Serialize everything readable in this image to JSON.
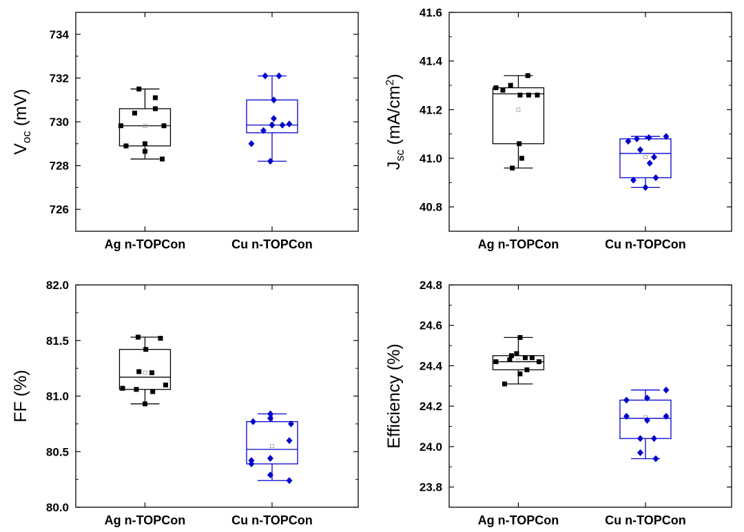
{
  "colors": {
    "ag": "#000000",
    "cu": "#0000CC",
    "mean_marker": "#999999"
  },
  "chart_data": [
    {
      "type": "box",
      "ylabel_main": "V",
      "ylabel_sub": "oc",
      "ylabel_sup": "",
      "ylabel_rest": " (mV)",
      "ylim": [
        725,
        735
      ],
      "yticks": [
        726,
        728,
        730,
        732,
        734
      ],
      "ytick_labels": [
        "726",
        "728",
        "730",
        "732",
        "734"
      ],
      "categories": [
        "Ag n-TOPCon",
        "Cu n-TOPCon"
      ],
      "series": [
        {
          "box": {
            "q1": 728.9,
            "median": 729.82,
            "q3": 730.6,
            "mean": 729.81,
            "whisker_low": 728.3,
            "whisker_high": 731.5
          },
          "points": [
            [
              -0.35,
              731.5
            ],
            [
              0.6,
              731.1
            ],
            [
              0.6,
              730.6
            ],
            [
              -0.6,
              730.4
            ],
            [
              -1.4,
              729.82
            ],
            [
              1.1,
              729.82
            ],
            [
              -1.1,
              728.9
            ],
            [
              0.0,
              729.0
            ],
            [
              0.0,
              728.65
            ],
            [
              1.0,
              728.3
            ]
          ]
        },
        {
          "box": {
            "q1": 729.5,
            "median": 729.85,
            "q3": 731.0,
            "mean": 729.9,
            "whisker_low": 728.2,
            "whisker_high": 732.1
          },
          "points": [
            [
              -0.4,
              732.1
            ],
            [
              0.4,
              732.1
            ],
            [
              0.1,
              731.0
            ],
            [
              0.1,
              730.15
            ],
            [
              -0.5,
              729.6
            ],
            [
              0.0,
              729.85
            ],
            [
              0.6,
              729.85
            ],
            [
              1.0,
              729.9
            ],
            [
              -1.2,
              729.0
            ],
            [
              -0.1,
              728.2
            ]
          ]
        }
      ]
    },
    {
      "type": "box",
      "ylabel_main": "J",
      "ylabel_sub": "sc",
      "ylabel_sup": "2",
      "ylabel_rest": " (mA/cm",
      "ylim": [
        40.7,
        41.6
      ],
      "yticks": [
        40.8,
        41.0,
        41.2,
        41.4,
        41.6
      ],
      "ytick_labels": [
        "40.8",
        "41.0",
        "41.2",
        "41.4",
        "41.6"
      ],
      "categories": [
        "Ag n-TOPCon",
        "Cu n-TOPCon"
      ],
      "series": [
        {
          "box": {
            "q1": 41.06,
            "median": 41.265,
            "q3": 41.29,
            "mean": 41.2,
            "whisker_low": 40.96,
            "whisker_high": 41.34
          },
          "points": [
            [
              0.55,
              41.34
            ],
            [
              -1.3,
              41.29
            ],
            [
              -0.9,
              41.28
            ],
            [
              -0.45,
              41.3
            ],
            [
              0.1,
              41.26
            ],
            [
              0.6,
              41.26
            ],
            [
              1.1,
              41.26
            ],
            [
              0.05,
              41.06
            ],
            [
              0.2,
              41.0
            ],
            [
              -0.35,
              40.96
            ]
          ]
        },
        {
          "box": {
            "q1": 40.92,
            "median": 41.02,
            "q3": 41.08,
            "mean": 41.005,
            "whisker_low": 40.88,
            "whisker_high": 41.09
          },
          "points": [
            [
              -1.0,
              41.07
            ],
            [
              -0.5,
              41.08
            ],
            [
              0.2,
              41.085
            ],
            [
              1.2,
              41.09
            ],
            [
              -0.3,
              41.035
            ],
            [
              0.5,
              41.005
            ],
            [
              0.25,
              40.98
            ],
            [
              -0.7,
              40.91
            ],
            [
              0.6,
              40.92
            ],
            [
              0.0,
              40.88
            ]
          ]
        }
      ]
    },
    {
      "type": "box",
      "ylabel_main": "FF (%)",
      "ylabel_sub": "",
      "ylabel_sup": "",
      "ylabel_rest": "",
      "ylim": [
        80.0,
        82.0
      ],
      "yticks": [
        80.0,
        80.5,
        81.0,
        81.5,
        82.0
      ],
      "ytick_labels": [
        "80.0",
        "80.5",
        "81.0",
        "81.5",
        "82.0"
      ],
      "categories": [
        "Ag n-TOPCon",
        "Cu n-TOPCon"
      ],
      "series": [
        {
          "box": {
            "q1": 81.06,
            "median": 81.17,
            "q3": 81.42,
            "mean": 81.21,
            "whisker_low": 80.93,
            "whisker_high": 81.53
          },
          "points": [
            [
              -0.4,
              81.53
            ],
            [
              0.9,
              81.52
            ],
            [
              0.05,
              81.42
            ],
            [
              -0.35,
              81.22
            ],
            [
              0.4,
              81.21
            ],
            [
              1.2,
              81.1
            ],
            [
              -1.3,
              81.07
            ],
            [
              -0.5,
              81.06
            ],
            [
              0.45,
              81.04
            ],
            [
              0.0,
              80.93
            ]
          ]
        },
        {
          "box": {
            "q1": 80.39,
            "median": 80.52,
            "q3": 80.77,
            "mean": 80.55,
            "whisker_low": 80.24,
            "whisker_high": 80.84
          },
          "points": [
            [
              -0.1,
              80.84
            ],
            [
              -0.1,
              80.8
            ],
            [
              -1.1,
              80.77
            ],
            [
              1.1,
              80.75
            ],
            [
              1.0,
              80.6
            ],
            [
              -0.1,
              80.44
            ],
            [
              -1.2,
              80.42
            ],
            [
              -1.2,
              80.39
            ],
            [
              -0.1,
              80.29
            ],
            [
              1.0,
              80.24
            ]
          ]
        }
      ]
    },
    {
      "type": "box",
      "ylabel_main": "Efficiency (%)",
      "ylabel_sub": "",
      "ylabel_sup": "",
      "ylabel_rest": "",
      "ylim": [
        23.7,
        24.8
      ],
      "yticks": [
        23.8,
        24.0,
        24.2,
        24.4,
        24.6,
        24.8
      ],
      "ytick_labels": [
        "23.8",
        "24.0",
        "24.2",
        "24.4",
        "24.6",
        "24.8"
      ],
      "categories": [
        "Ag n-TOPCon",
        "Cu n-TOPCon"
      ],
      "series": [
        {
          "box": {
            "q1": 24.38,
            "median": 24.42,
            "q3": 24.45,
            "mean": 24.425,
            "whisker_low": 24.31,
            "whisker_high": 24.54
          },
          "points": [
            [
              0.1,
              24.54
            ],
            [
              -0.4,
              24.45
            ],
            [
              -0.1,
              24.46
            ],
            [
              0.4,
              24.44
            ],
            [
              0.8,
              24.44
            ],
            [
              -1.3,
              24.42
            ],
            [
              -0.5,
              24.43
            ],
            [
              1.2,
              24.42
            ],
            [
              0.5,
              24.38
            ],
            [
              0.1,
              24.36
            ],
            [
              -0.8,
              24.31
            ]
          ]
        },
        {
          "box": {
            "q1": 24.04,
            "median": 24.14,
            "q3": 24.23,
            "mean": 24.145,
            "whisker_low": 23.94,
            "whisker_high": 24.28
          },
          "points": [
            [
              1.2,
              24.28
            ],
            [
              -1.1,
              24.23
            ],
            [
              0.1,
              24.24
            ],
            [
              -1.1,
              24.15
            ],
            [
              0.1,
              24.13
            ],
            [
              1.2,
              24.15
            ],
            [
              -0.3,
              24.04
            ],
            [
              0.5,
              24.04
            ],
            [
              -0.3,
              23.97
            ],
            [
              0.6,
              23.94
            ]
          ]
        }
      ]
    }
  ]
}
